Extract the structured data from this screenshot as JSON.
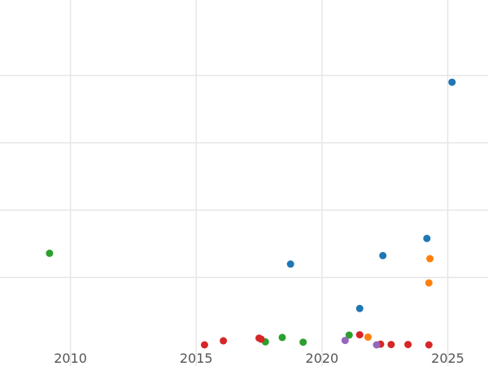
{
  "chart_data": {
    "type": "scatter",
    "title": "",
    "xlabel": "",
    "ylabel": "",
    "grid": true,
    "xlim": [
      2007.2,
      2026.6
    ],
    "ylim": [
      0,
      1
    ],
    "x_ticks": [
      2010,
      2015,
      2020,
      2025
    ],
    "x_tick_labels": [
      "2010",
      "2015",
      "2020",
      "2025"
    ],
    "y_gridlines": [
      0.2,
      0.4,
      0.6,
      0.8
    ],
    "series": [
      {
        "color": "#1f77b4",
        "points": [
          {
            "x": 2025.17,
            "y": 0.78
          },
          {
            "x": 2024.17,
            "y": 0.316
          },
          {
            "x": 2022.42,
            "y": 0.265
          },
          {
            "x": 2018.75,
            "y": 0.24
          },
          {
            "x": 2021.5,
            "y": 0.108
          }
        ]
      },
      {
        "color": "#ff7f0e",
        "points": [
          {
            "x": 2024.29,
            "y": 0.256
          },
          {
            "x": 2024.25,
            "y": 0.184
          },
          {
            "x": 2021.83,
            "y": 0.023
          }
        ]
      },
      {
        "color": "#2ca02c",
        "points": [
          {
            "x": 2009.17,
            "y": 0.272
          },
          {
            "x": 2018.42,
            "y": 0.022
          },
          {
            "x": 2017.75,
            "y": 0.009
          },
          {
            "x": 2019.25,
            "y": 0.008
          },
          {
            "x": 2021.08,
            "y": 0.029
          }
        ]
      },
      {
        "color": "#d62728",
        "points": [
          {
            "x": 2015.33,
            "y": 0.0
          },
          {
            "x": 2016.08,
            "y": 0.012
          },
          {
            "x": 2017.5,
            "y": 0.02
          },
          {
            "x": 2017.58,
            "y": 0.017
          },
          {
            "x": 2021.5,
            "y": 0.03
          },
          {
            "x": 2022.33,
            "y": 0.002
          },
          {
            "x": 2022.75,
            "y": 0.001
          },
          {
            "x": 2023.42,
            "y": 0.001
          },
          {
            "x": 2024.25,
            "y": 0.0
          }
        ]
      },
      {
        "color": "#9467bd",
        "points": [
          {
            "x": 2020.92,
            "y": 0.013
          },
          {
            "x": 2022.17,
            "y": 0.0
          }
        ]
      }
    ]
  }
}
